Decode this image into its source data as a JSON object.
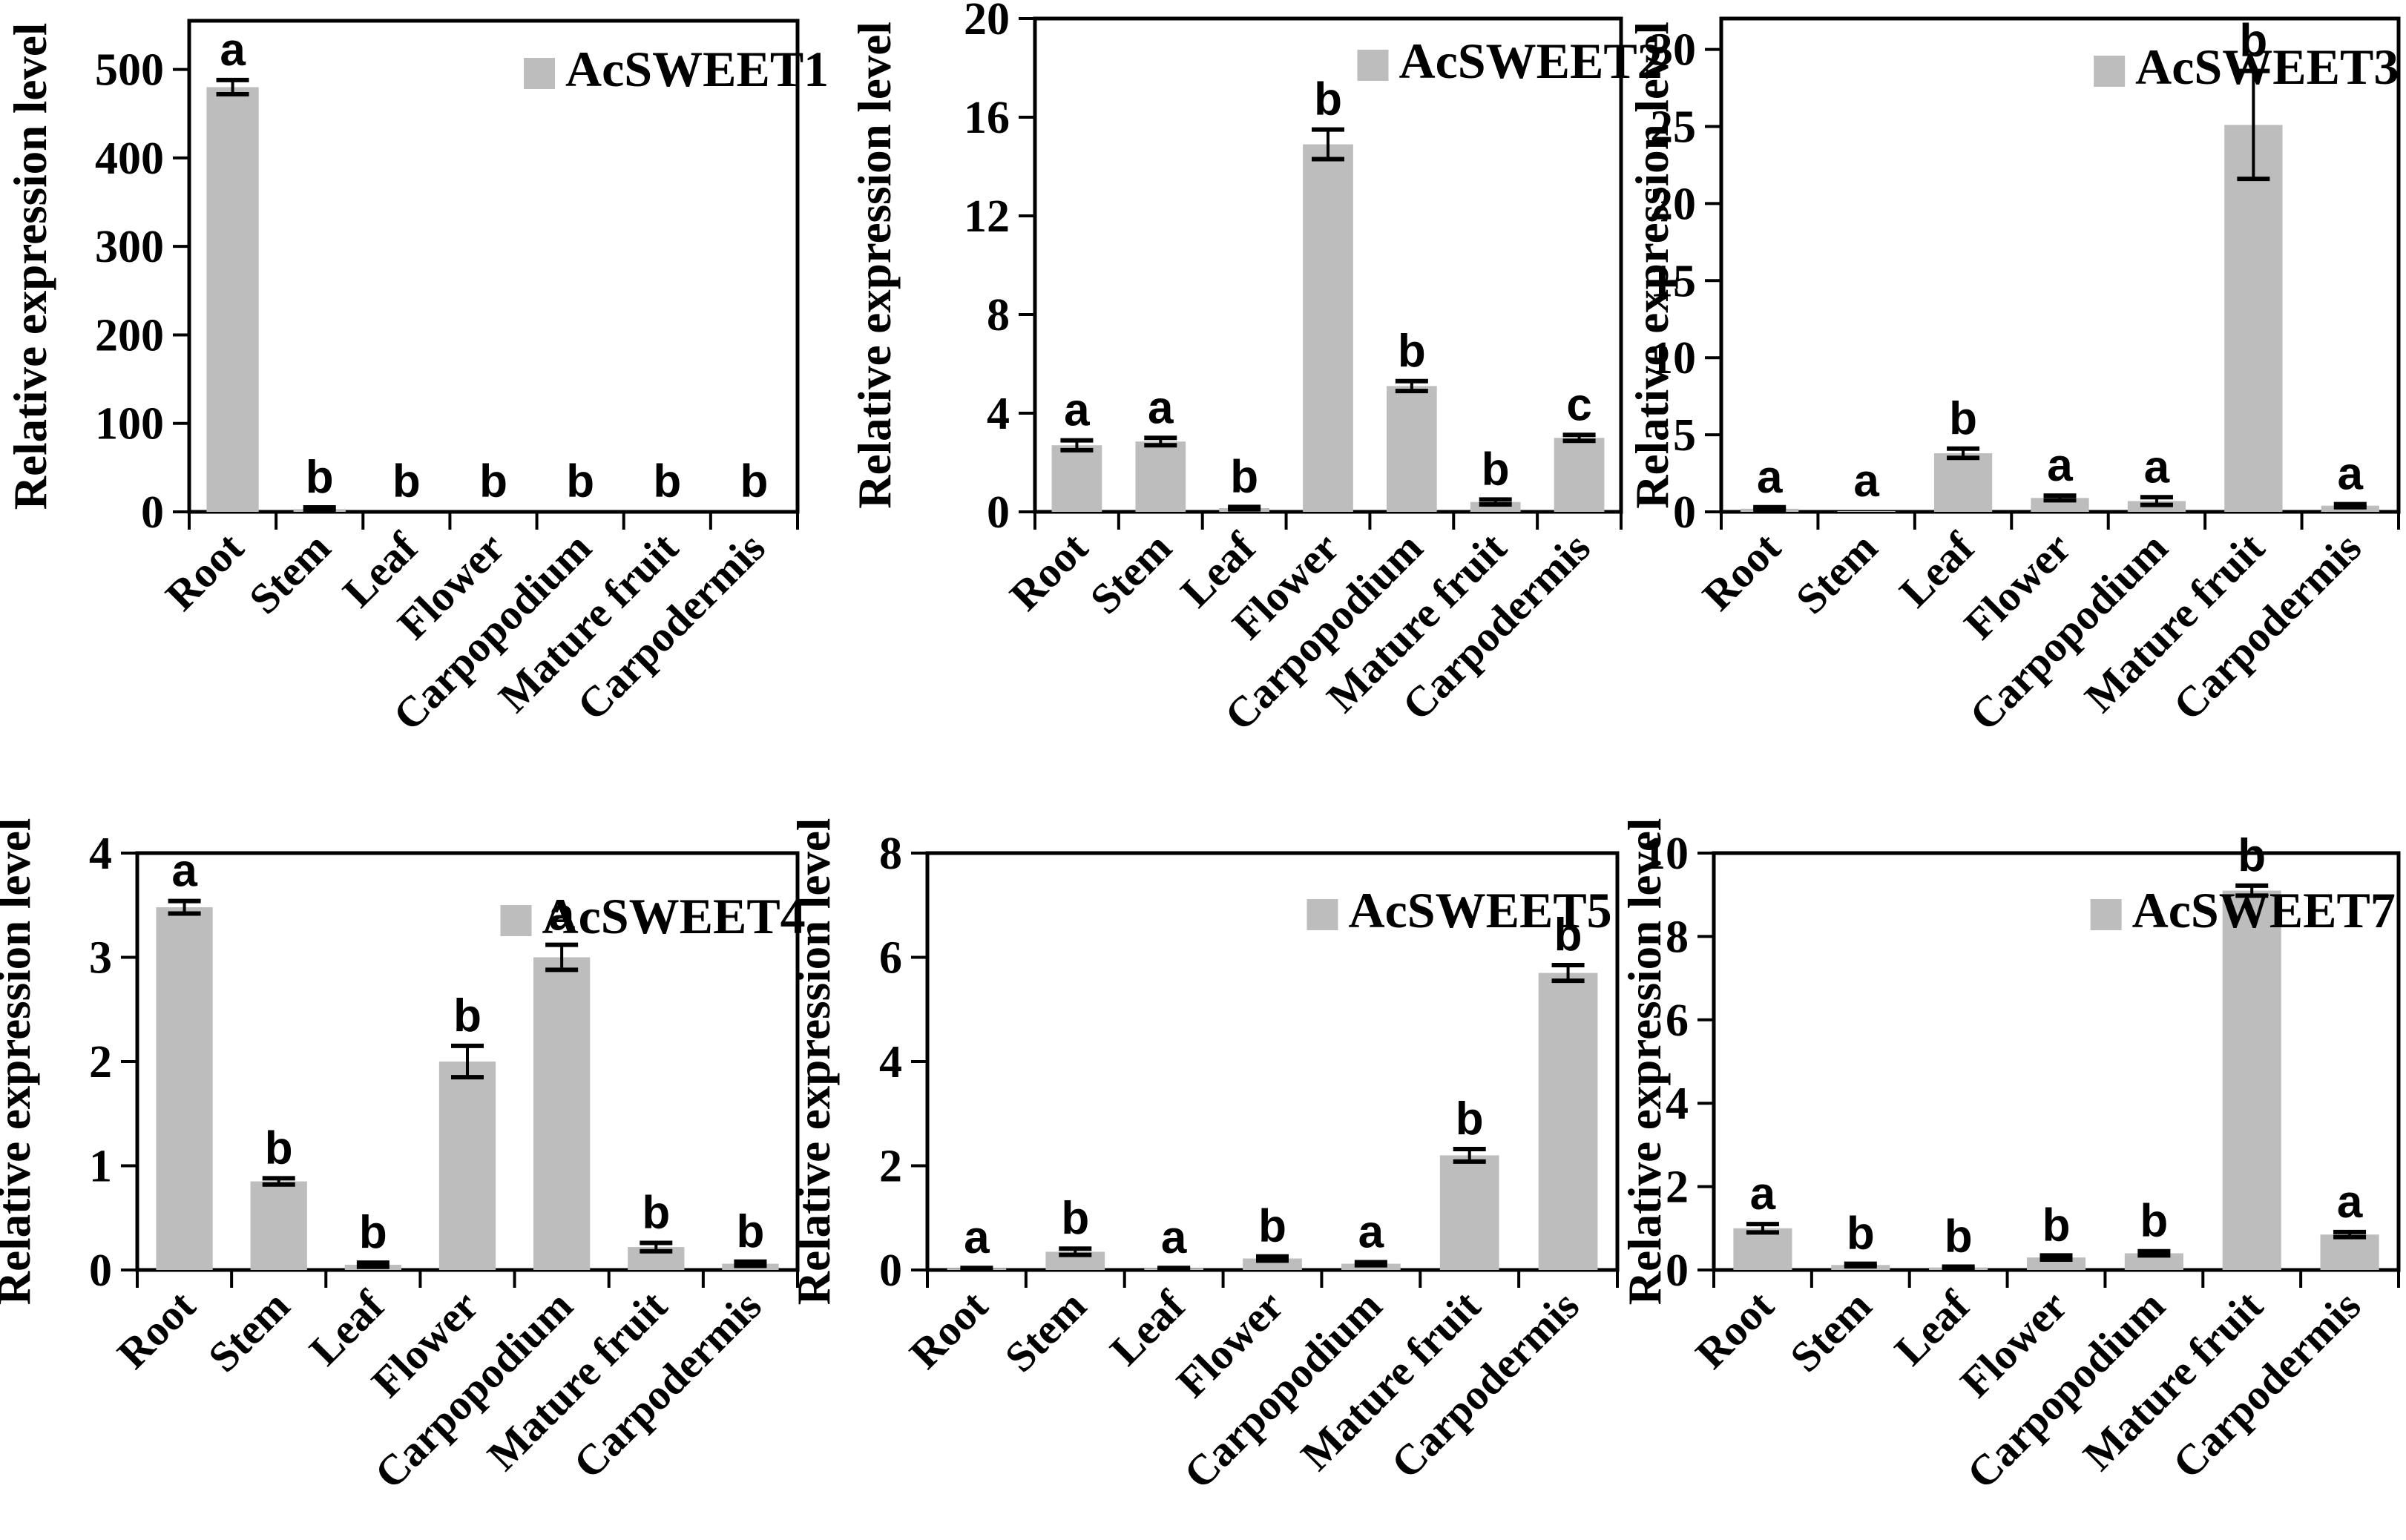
{
  "figure": {
    "background": "#ffffff",
    "bar_color": "#bdbdbd",
    "axis_color": "#000000",
    "text_color": "#000000",
    "ylabel": "Relative expression level"
  },
  "chart_data": [
    {
      "type": "bar",
      "title": "AcSWEET1",
      "legend": "AcSWEET1",
      "ylabel": "Relative expression level",
      "categories": [
        "Root",
        "Stem",
        "Leaf",
        "Flower",
        "Carpopodium",
        "Mature fruit",
        "Carpodermis"
      ],
      "values": [
        480,
        3,
        0.4,
        0.3,
        0.3,
        0.3,
        0.3
      ],
      "errors": [
        8,
        2,
        0,
        0,
        0,
        0,
        0
      ],
      "sig_letters": [
        "a",
        "b",
        "b",
        "b",
        "b",
        "b",
        "b"
      ],
      "yticks": [
        0,
        100,
        200,
        300,
        400,
        500
      ],
      "ylim": [
        0,
        555
      ],
      "grid": false,
      "legend_position": "top-center"
    },
    {
      "type": "bar",
      "title": "AcSWEET2",
      "legend": "AcSWEET2",
      "ylabel": "Relative expression level",
      "categories": [
        "Root",
        "Stem",
        "Leaf",
        "Flower",
        "Carpopodium",
        "Mature fruit",
        "Carpodermis"
      ],
      "values": [
        2.7,
        2.85,
        0.15,
        14.9,
        5.1,
        0.4,
        3.0
      ],
      "errors": [
        0.2,
        0.15,
        0.05,
        0.6,
        0.2,
        0.1,
        0.12
      ],
      "sig_letters": [
        "a",
        "a",
        "b",
        "b",
        "b",
        "b",
        "c"
      ],
      "yticks": [
        0,
        4,
        8,
        12,
        16,
        20
      ],
      "ylim": [
        0,
        20
      ],
      "grid": false,
      "legend_position": "top-center"
    },
    {
      "type": "bar",
      "title": "AcSWEET3",
      "legend": "AcSWEET3",
      "ylabel": "Relative expression level",
      "categories": [
        "Root",
        "Stem",
        "Leaf",
        "Flower",
        "Carpopodium",
        "Mature fruit",
        "Carpodermis"
      ],
      "values": [
        0.2,
        0.05,
        3.8,
        0.9,
        0.7,
        25.1,
        0.4
      ],
      "errors": [
        0.1,
        0,
        0.3,
        0.15,
        0.25,
        3.5,
        0.1
      ],
      "sig_letters": [
        "a",
        "a",
        "b",
        "a",
        "a",
        "b",
        "a"
      ],
      "yticks": [
        0,
        5,
        10,
        15,
        20,
        25,
        30
      ],
      "ylim": [
        0,
        32
      ],
      "grid": false,
      "legend_position": "top-center"
    },
    {
      "type": "bar",
      "title": "AcSWEET4",
      "legend": "AcSWEET4",
      "ylabel": "Relative expression level",
      "categories": [
        "Root",
        "Stem",
        "Leaf",
        "Flower",
        "Carpopodium",
        "Mature fruit",
        "Carpodermis"
      ],
      "values": [
        3.48,
        0.85,
        0.05,
        2.0,
        3.0,
        0.22,
        0.06
      ],
      "errors": [
        0.06,
        0.03,
        0.02,
        0.15,
        0.12,
        0.04,
        0.02
      ],
      "sig_letters": [
        "a",
        "b",
        "b",
        "b",
        "a",
        "b",
        "b"
      ],
      "yticks": [
        0,
        1,
        2,
        3,
        4
      ],
      "ylim": [
        0,
        4
      ],
      "grid": false,
      "legend_position": "top-center"
    },
    {
      "type": "bar",
      "title": "AcSWEET5",
      "legend": "AcSWEET5",
      "ylabel": "Relative expression level",
      "categories": [
        "Root",
        "Stem",
        "Leaf",
        "Flower",
        "Carpopodium",
        "Mature fruit",
        "Carpodermis"
      ],
      "values": [
        0.03,
        0.35,
        0.03,
        0.22,
        0.12,
        2.2,
        5.7
      ],
      "errors": [
        0.01,
        0.06,
        0.01,
        0.04,
        0.03,
        0.12,
        0.15
      ],
      "sig_letters": [
        "a",
        "b",
        "a",
        "b",
        "a",
        "b",
        "b"
      ],
      "yticks": [
        0,
        2,
        4,
        6,
        8
      ],
      "ylim": [
        0,
        8
      ],
      "grid": false,
      "legend_position": "top-center"
    },
    {
      "type": "bar",
      "title": "AcSWEET7",
      "legend": "AcSWEET7",
      "ylabel": "Relative expression level",
      "categories": [
        "Root",
        "Stem",
        "Leaf",
        "Flower",
        "Carpopodium",
        "Mature fruit",
        "Carpodermis"
      ],
      "values": [
        1.0,
        0.12,
        0.06,
        0.3,
        0.4,
        9.1,
        0.85
      ],
      "errors": [
        0.1,
        0.03,
        0.02,
        0.05,
        0.05,
        0.12,
        0.06
      ],
      "sig_letters": [
        "a",
        "b",
        "b",
        "b",
        "b",
        "b",
        "a"
      ],
      "yticks": [
        0,
        2,
        4,
        6,
        8,
        10
      ],
      "ylim": [
        0,
        10
      ],
      "grid": false,
      "legend_position": "top-center"
    }
  ]
}
